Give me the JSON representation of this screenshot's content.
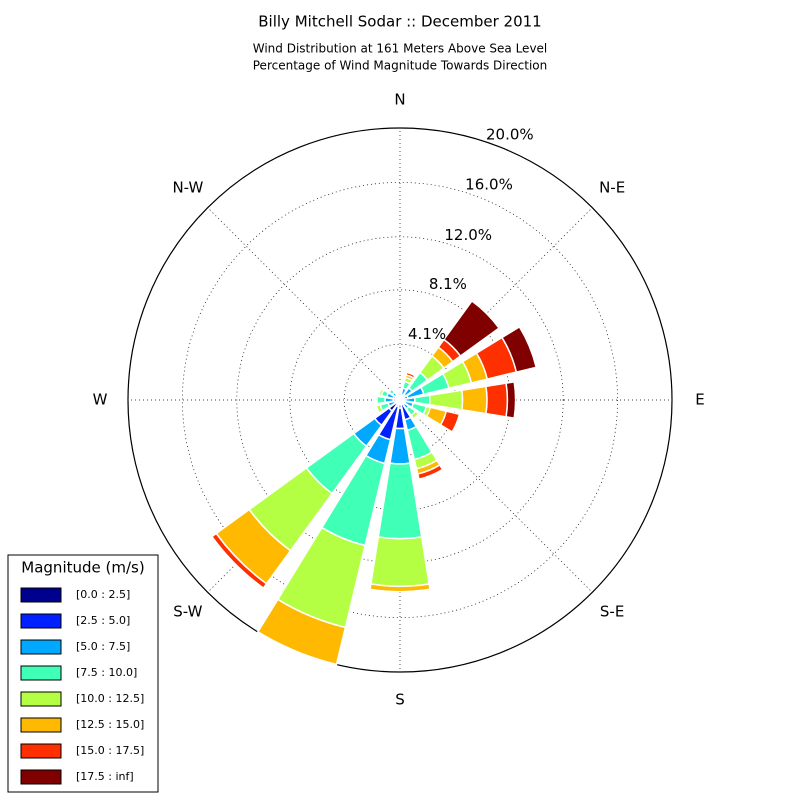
{
  "chart_data": {
    "type": "windrose",
    "title": "Billy Mitchell Sodar :: December 2011",
    "subtitle": [
      "Wind Distribution at 161 Meters Above Sea Level",
      "Percentage of Wind Magnitude Towards Direction"
    ],
    "legend_title": "Magnitude (m/s)",
    "legend": "lower left",
    "categories": [
      "N",
      null,
      "N-E",
      null,
      "E",
      null,
      "S-E",
      null,
      "S",
      null,
      "S-W",
      null,
      "W",
      null,
      "N-W",
      null
    ],
    "rlim": [
      0,
      20
    ],
    "rticks": [
      {
        "value": 4.1,
        "label": "4.1%"
      },
      {
        "value": 8.1,
        "label": "8.1%"
      },
      {
        "value": 12.0,
        "label": "12.0%"
      },
      {
        "value": 16.0,
        "label": "16.0%"
      },
      {
        "value": 20.0,
        "label": "20.0%"
      }
    ],
    "grid": true,
    "series": [
      {
        "name": "[0.0 : 2.5]",
        "color": "#00008f",
        "values": [
          0.1,
          0.1,
          0.1,
          0.1,
          0.1,
          0.1,
          0.1,
          0.3,
          0.6,
          0.5,
          1.0,
          0.1,
          0.1,
          0.1,
          0.1,
          0.1
        ]
      },
      {
        "name": "[2.5 : 5.0]",
        "color": "#0020ff",
        "values": [
          0.2,
          0.3,
          0.4,
          0.5,
          0.25,
          0.3,
          0.3,
          1.2,
          1.5,
          2.5,
          1.3,
          0.3,
          0.4,
          0.4,
          0.3,
          0.2
        ]
      },
      {
        "name": "[5.0 : 7.5]",
        "color": "#00a8ff",
        "values": [
          0.2,
          0.5,
          0.6,
          1.2,
          0.75,
          0.6,
          0.4,
          0.8,
          2.6,
          1.8,
          1.9,
          0.5,
          0.6,
          0.5,
          0.3,
          0.1
        ]
      },
      {
        "name": "[7.5 : 10.0]",
        "color": "#40ffb7",
        "values": [
          0.1,
          0.5,
          1.4,
          1.9,
          1.1,
          1.0,
          0.6,
          2.2,
          5.5,
          6.2,
          4.3,
          0.6,
          0.6,
          0.4,
          0.3,
          0.1
        ]
      },
      {
        "name": "[10.0 : 12.5]",
        "color": "#b4ff43",
        "values": [
          0,
          0.3,
          1.5,
          1.7,
          2.4,
          0.3,
          0.3,
          0.7,
          3.5,
          6.2,
          5.2,
          0.3,
          0.1,
          0.2,
          0.1,
          0
        ]
      },
      {
        "name": "[12.5 : 15.0]",
        "color": "#ffb900",
        "values": [
          0,
          0.2,
          0.8,
          1.2,
          1.8,
          1.2,
          0.1,
          0.4,
          0.4,
          2.8,
          3.0,
          0.1,
          0,
          0,
          0,
          0
        ]
      },
      {
        "name": "[15.0 : 17.5]",
        "color": "#ff3000",
        "values": [
          0,
          0.2,
          0.7,
          2.2,
          1.5,
          1.0,
          0.1,
          0.4,
          0,
          0,
          0.4,
          0,
          0,
          0,
          0,
          0
        ]
      },
      {
        "name": "[17.5 : inf]",
        "color": "#800000",
        "values": [
          0,
          0.1,
          3.5,
          1.5,
          0.6,
          0,
          0,
          0,
          0,
          0,
          0,
          0,
          0,
          0,
          0,
          0
        ]
      }
    ]
  }
}
